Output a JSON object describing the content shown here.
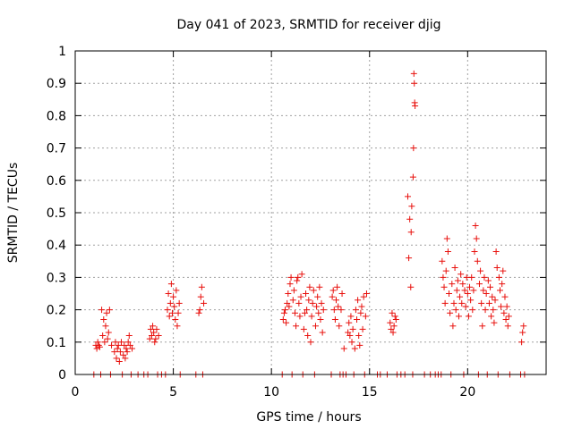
{
  "chart_data": {
    "type": "scatter",
    "title": "Day 041 of 2023, SRMTID for receiver djig",
    "xlabel": "GPS time / hours",
    "ylabel": "SRMTID / TECUs",
    "xlim": [
      0,
      24
    ],
    "ylim": [
      0,
      1
    ],
    "xticks": [
      0,
      5,
      10,
      15,
      20
    ],
    "xtick_labels": [
      "0",
      "5",
      "10",
      "15",
      "20"
    ],
    "yticks": [
      0,
      0.1,
      0.2,
      0.3,
      0.4,
      0.5,
      0.6,
      0.7,
      0.8,
      0.9,
      1
    ],
    "ytick_labels": [
      "0",
      "0.1",
      "0.2",
      "0.3",
      "0.4",
      "0.5",
      "0.6",
      "0.7",
      "0.8",
      "0.9",
      "1"
    ],
    "grid": true,
    "marker": "+",
    "marker_color": "#e8100c",
    "series": [
      {
        "name": "SRMTID",
        "points": [
          [
            0.95,
            0.0
          ],
          [
            1.05,
            0.09
          ],
          [
            1.1,
            0.08
          ],
          [
            1.15,
            0.1
          ],
          [
            1.2,
            0.09
          ],
          [
            1.25,
            0.085
          ],
          [
            1.3,
            0.0
          ],
          [
            1.35,
            0.2
          ],
          [
            1.4,
            0.12
          ],
          [
            1.45,
            0.17
          ],
          [
            1.5,
            0.1
          ],
          [
            1.55,
            0.15
          ],
          [
            1.6,
            0.19
          ],
          [
            1.65,
            0.11
          ],
          [
            1.7,
            0.13
          ],
          [
            1.75,
            0.2
          ],
          [
            1.8,
            0.0
          ],
          [
            1.85,
            0.09
          ],
          [
            2.0,
            0.07
          ],
          [
            2.05,
            0.1
          ],
          [
            2.1,
            0.05
          ],
          [
            2.15,
            0.08
          ],
          [
            2.2,
            0.09
          ],
          [
            2.25,
            0.04
          ],
          [
            2.3,
            0.07
          ],
          [
            2.35,
            0.1
          ],
          [
            2.4,
            0.0
          ],
          [
            2.45,
            0.06
          ],
          [
            2.5,
            0.09
          ],
          [
            2.55,
            0.05
          ],
          [
            2.6,
            0.08
          ],
          [
            2.65,
            0.07
          ],
          [
            2.7,
            0.1
          ],
          [
            2.75,
            0.12
          ],
          [
            2.8,
            0.09
          ],
          [
            2.85,
            0.0
          ],
          [
            2.9,
            0.08
          ],
          [
            3.2,
            0.0
          ],
          [
            3.5,
            0.0
          ],
          [
            3.7,
            0.0
          ],
          [
            3.8,
            0.11
          ],
          [
            3.85,
            0.14
          ],
          [
            3.9,
            0.12
          ],
          [
            3.95,
            0.15
          ],
          [
            4.0,
            0.13
          ],
          [
            4.05,
            0.1
          ],
          [
            4.1,
            0.11
          ],
          [
            4.15,
            0.14
          ],
          [
            4.2,
            0.0
          ],
          [
            4.25,
            0.12
          ],
          [
            4.4,
            0.0
          ],
          [
            4.6,
            0.0
          ],
          [
            4.7,
            0.2
          ],
          [
            4.75,
            0.25
          ],
          [
            4.8,
            0.18
          ],
          [
            4.85,
            0.22
          ],
          [
            4.9,
            0.28
          ],
          [
            4.95,
            0.19
          ],
          [
            5.0,
            0.24
          ],
          [
            5.05,
            0.21
          ],
          [
            5.1,
            0.17
          ],
          [
            5.15,
            0.26
          ],
          [
            5.2,
            0.15
          ],
          [
            5.25,
            0.19
          ],
          [
            5.3,
            0.22
          ],
          [
            5.35,
            0.0
          ],
          [
            6.15,
            0.0
          ],
          [
            6.3,
            0.19
          ],
          [
            6.35,
            0.2
          ],
          [
            6.4,
            0.24
          ],
          [
            6.45,
            0.27
          ],
          [
            6.5,
            0.0
          ],
          [
            6.55,
            0.22
          ],
          [
            10.55,
            0.0
          ],
          [
            10.6,
            0.17
          ],
          [
            10.65,
            0.19
          ],
          [
            10.7,
            0.2
          ],
          [
            10.75,
            0.16
          ],
          [
            10.8,
            0.22
          ],
          [
            10.85,
            0.25
          ],
          [
            10.9,
            0.21
          ],
          [
            10.95,
            0.28
          ],
          [
            11.0,
            0.3
          ],
          [
            11.05,
            0.0
          ],
          [
            11.1,
            0.23
          ],
          [
            11.15,
            0.26
          ],
          [
            11.2,
            0.19
          ],
          [
            11.25,
            0.15
          ],
          [
            11.3,
            0.29
          ],
          [
            11.35,
            0.3
          ],
          [
            11.4,
            0.22
          ],
          [
            11.45,
            0.18
          ],
          [
            11.5,
            0.24
          ],
          [
            11.55,
            0.31
          ],
          [
            11.6,
            0.0
          ],
          [
            11.65,
            0.14
          ],
          [
            11.7,
            0.19
          ],
          [
            11.75,
            0.25
          ],
          [
            11.8,
            0.2
          ],
          [
            11.85,
            0.12
          ],
          [
            11.9,
            0.23
          ],
          [
            11.95,
            0.27
          ],
          [
            12.0,
            0.1
          ],
          [
            12.05,
            0.18
          ],
          [
            12.1,
            0.22
          ],
          [
            12.15,
            0.26
          ],
          [
            12.2,
            0.0
          ],
          [
            12.25,
            0.15
          ],
          [
            12.3,
            0.21
          ],
          [
            12.35,
            0.24
          ],
          [
            12.4,
            0.19
          ],
          [
            12.45,
            0.27
          ],
          [
            12.5,
            0.17
          ],
          [
            12.55,
            0.22
          ],
          [
            12.6,
            0.13
          ],
          [
            12.65,
            0.2
          ],
          [
            13.05,
            0.0
          ],
          [
            13.1,
            0.24
          ],
          [
            13.15,
            0.26
          ],
          [
            13.2,
            0.2
          ],
          [
            13.25,
            0.17
          ],
          [
            13.3,
            0.23
          ],
          [
            13.35,
            0.27
          ],
          [
            13.4,
            0.21
          ],
          [
            13.45,
            0.15
          ],
          [
            13.5,
            0.0
          ],
          [
            13.55,
            0.2
          ],
          [
            13.6,
            0.25
          ],
          [
            13.65,
            0.0
          ],
          [
            13.7,
            0.08
          ],
          [
            13.8,
            0.0
          ],
          [
            13.9,
            0.13
          ],
          [
            13.95,
            0.16
          ],
          [
            14.0,
            0.12
          ],
          [
            14.05,
            0.18
          ],
          [
            14.1,
            0.1
          ],
          [
            14.15,
            0.14
          ],
          [
            14.2,
            0.0
          ],
          [
            14.25,
            0.08
          ],
          [
            14.3,
            0.2
          ],
          [
            14.35,
            0.17
          ],
          [
            14.4,
            0.23
          ],
          [
            14.45,
            0.12
          ],
          [
            14.5,
            0.09
          ],
          [
            14.55,
            0.19
          ],
          [
            14.6,
            0.21
          ],
          [
            14.65,
            0.14
          ],
          [
            14.7,
            0.24
          ],
          [
            14.75,
            0.0
          ],
          [
            14.8,
            0.18
          ],
          [
            14.85,
            0.25
          ],
          [
            15.4,
            0.0
          ],
          [
            15.55,
            0.0
          ],
          [
            15.9,
            0.0
          ],
          [
            16.05,
            0.16
          ],
          [
            16.1,
            0.14
          ],
          [
            16.15,
            0.19
          ],
          [
            16.2,
            0.13
          ],
          [
            16.25,
            0.15
          ],
          [
            16.3,
            0.18
          ],
          [
            16.35,
            0.17
          ],
          [
            16.4,
            0.0
          ],
          [
            16.6,
            0.0
          ],
          [
            16.8,
            0.0
          ],
          [
            16.95,
            0.55
          ],
          [
            17.0,
            0.36
          ],
          [
            17.05,
            0.48
          ],
          [
            17.1,
            0.27
          ],
          [
            17.12,
            0.44
          ],
          [
            17.15,
            0.52
          ],
          [
            17.2,
            0.0
          ],
          [
            17.22,
            0.61
          ],
          [
            17.24,
            0.7
          ],
          [
            17.26,
            0.93
          ],
          [
            17.28,
            0.9
          ],
          [
            17.3,
            0.84
          ],
          [
            17.32,
            0.83
          ],
          [
            17.8,
            0.0
          ],
          [
            18.1,
            0.0
          ],
          [
            18.35,
            0.0
          ],
          [
            18.5,
            0.0
          ],
          [
            18.65,
            0.0
          ],
          [
            18.7,
            0.35
          ],
          [
            18.75,
            0.3
          ],
          [
            18.8,
            0.27
          ],
          [
            18.85,
            0.22
          ],
          [
            18.9,
            0.32
          ],
          [
            18.95,
            0.42
          ],
          [
            19.0,
            0.38
          ],
          [
            19.05,
            0.25
          ],
          [
            19.1,
            0.19
          ],
          [
            19.15,
            0.0
          ],
          [
            19.2,
            0.28
          ],
          [
            19.25,
            0.15
          ],
          [
            19.3,
            0.22
          ],
          [
            19.35,
            0.33
          ],
          [
            19.4,
            0.2
          ],
          [
            19.45,
            0.26
          ],
          [
            19.5,
            0.29
          ],
          [
            19.55,
            0.18
          ],
          [
            19.6,
            0.24
          ],
          [
            19.65,
            0.31
          ],
          [
            19.7,
            0.22
          ],
          [
            19.75,
            0.28
          ],
          [
            19.8,
            0.0
          ],
          [
            19.85,
            0.26
          ],
          [
            19.9,
            0.21
          ],
          [
            19.95,
            0.3
          ],
          [
            20.0,
            0.25
          ],
          [
            20.05,
            0.18
          ],
          [
            20.1,
            0.27
          ],
          [
            20.15,
            0.23
          ],
          [
            20.2,
            0.3
          ],
          [
            20.25,
            0.2
          ],
          [
            20.3,
            0.26
          ],
          [
            20.35,
            0.38
          ],
          [
            20.4,
            0.46
          ],
          [
            20.45,
            0.42
          ],
          [
            20.5,
            0.35
          ],
          [
            20.55,
            0.0
          ],
          [
            20.6,
            0.28
          ],
          [
            20.65,
            0.32
          ],
          [
            20.7,
            0.22
          ],
          [
            20.75,
            0.15
          ],
          [
            20.8,
            0.26
          ],
          [
            20.85,
            0.3
          ],
          [
            20.9,
            0.2
          ],
          [
            20.95,
            0.25
          ],
          [
            21.0,
            0.0
          ],
          [
            21.05,
            0.29
          ],
          [
            21.1,
            0.22
          ],
          [
            21.15,
            0.27
          ],
          [
            21.2,
            0.18
          ],
          [
            21.25,
            0.24
          ],
          [
            21.3,
            0.2
          ],
          [
            21.35,
            0.16
          ],
          [
            21.4,
            0.23
          ],
          [
            21.45,
            0.38
          ],
          [
            21.5,
            0.33
          ],
          [
            21.55,
            0.0
          ],
          [
            21.6,
            0.3
          ],
          [
            21.65,
            0.26
          ],
          [
            21.7,
            0.21
          ],
          [
            21.75,
            0.28
          ],
          [
            21.8,
            0.32
          ],
          [
            21.85,
            0.19
          ],
          [
            21.9,
            0.24
          ],
          [
            21.95,
            0.17
          ],
          [
            22.0,
            0.21
          ],
          [
            22.05,
            0.15
          ],
          [
            22.1,
            0.18
          ],
          [
            22.15,
            0.0
          ],
          [
            22.7,
            0.0
          ],
          [
            22.75,
            0.1
          ],
          [
            22.8,
            0.13
          ],
          [
            22.85,
            0.15
          ],
          [
            22.9,
            0.0
          ]
        ]
      }
    ]
  }
}
